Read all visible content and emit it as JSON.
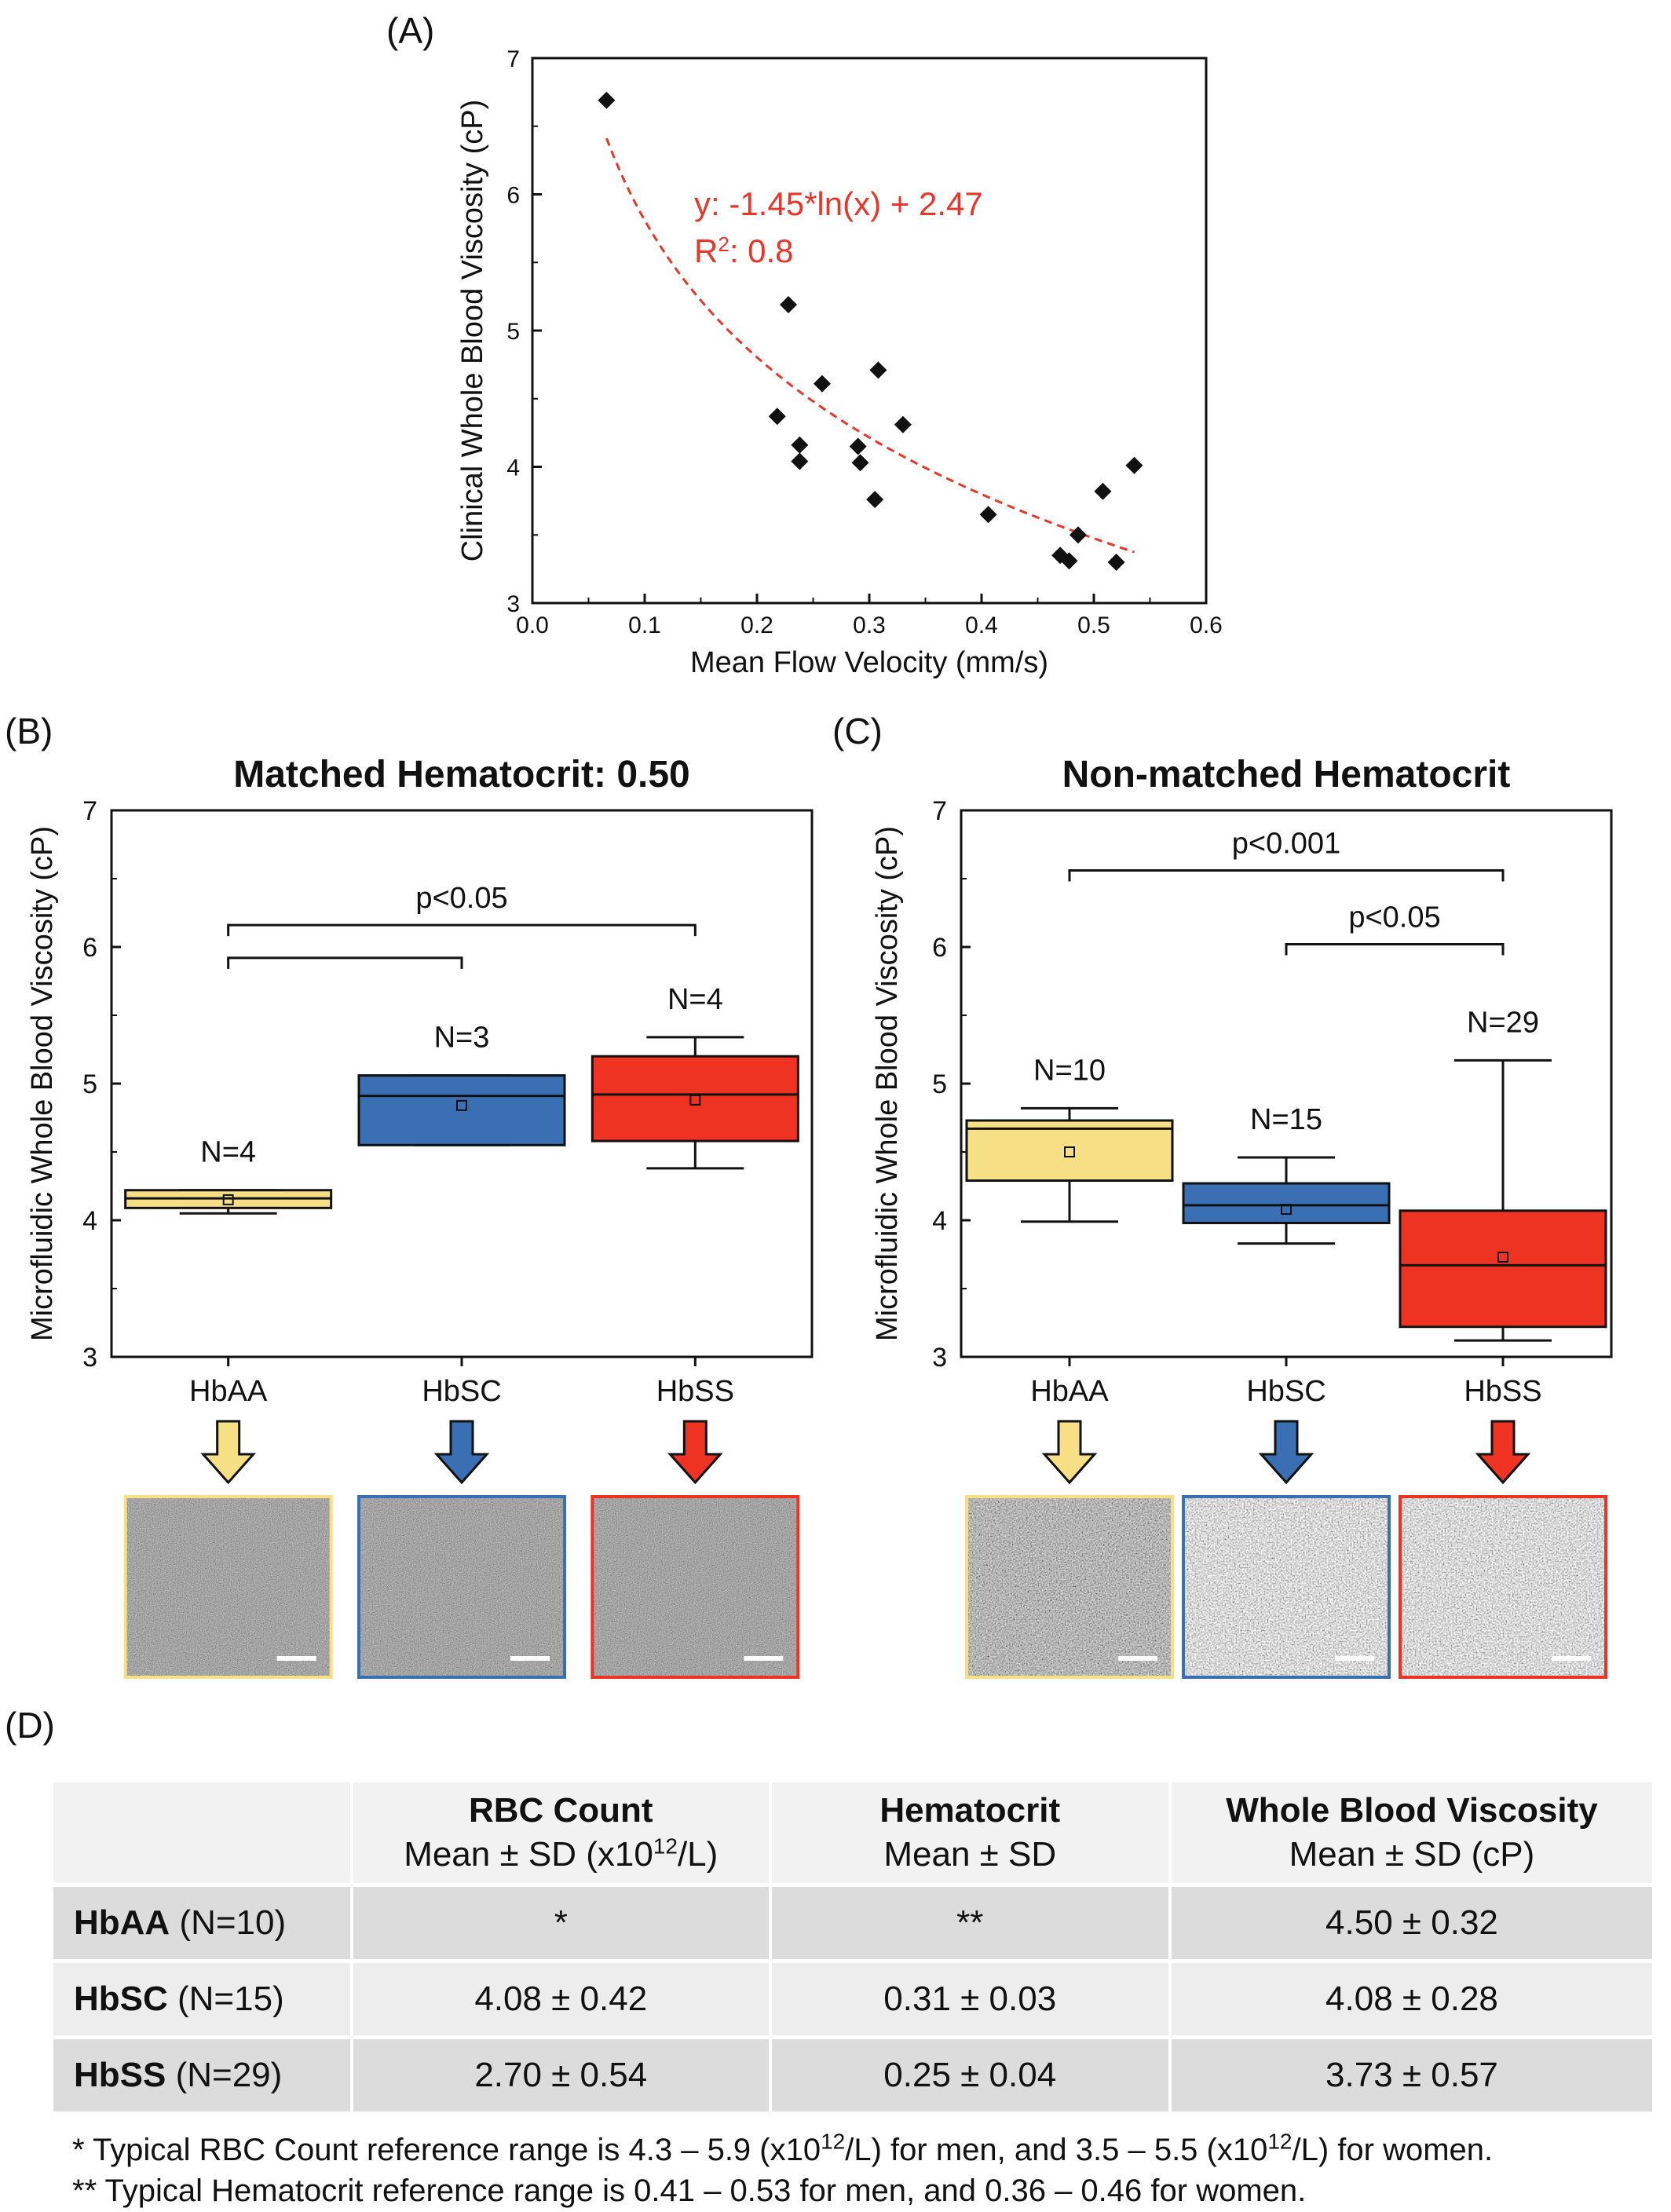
{
  "panels": {
    "a": "(A)",
    "b": "(B)",
    "c": "(C)",
    "d": "(D)"
  },
  "colors": {
    "hbaa": "#f7df86",
    "hbsc": "#3b6fb3",
    "hbss": "#ee3323",
    "fit": "#e8362a"
  },
  "chart_data": [
    {
      "type": "scatter",
      "xlabel": "Mean Flow Velocity (mm/s)",
      "ylabel": "Clinical Whole Blood Viscosity (cP)",
      "xlim": [
        0.0,
        0.6
      ],
      "ylim": [
        3,
        7
      ],
      "xticks": [
        "0.0",
        "0.1",
        "0.2",
        "0.3",
        "0.4",
        "0.5",
        "0.6"
      ],
      "yticks": [
        "3",
        "4",
        "5",
        "6",
        "7"
      ],
      "points": [
        [
          0.066,
          6.69
        ],
        [
          0.228,
          5.19
        ],
        [
          0.218,
          4.37
        ],
        [
          0.238,
          4.16
        ],
        [
          0.238,
          4.04
        ],
        [
          0.258,
          4.61
        ],
        [
          0.308,
          4.71
        ],
        [
          0.29,
          4.15
        ],
        [
          0.292,
          4.03
        ],
        [
          0.33,
          4.31
        ],
        [
          0.305,
          3.76
        ],
        [
          0.406,
          3.65
        ],
        [
          0.47,
          3.35
        ],
        [
          0.478,
          3.31
        ],
        [
          0.486,
          3.5
        ],
        [
          0.508,
          3.82
        ],
        [
          0.52,
          3.3
        ],
        [
          0.536,
          4.01
        ]
      ],
      "fit": {
        "label": "y: -1.45*ln(x) + 2.47",
        "r2_label": "R",
        "r2_sup": "2",
        "r2_value": ": 0.8",
        "a": -1.45,
        "b": 2.47,
        "x_from": 0.066,
        "x_to": 0.536
      },
      "grid": false
    },
    {
      "type": "box",
      "title": "Matched Hematocrit: 0.50",
      "ylabel": "Microfluidic Whole Blood Viscosity (cP)",
      "ylim": [
        3,
        7
      ],
      "yticks": [
        "3",
        "4",
        "5",
        "6",
        "7"
      ],
      "categories": [
        "HbAA",
        "HbSC",
        "HbSS"
      ],
      "boxes": [
        {
          "n_label": "N=4",
          "whisker_low": 4.05,
          "q1": 4.09,
          "median": 4.16,
          "q3": 4.22,
          "whisker_high": 4.22,
          "mean": 4.15,
          "color": "hbaa"
        },
        {
          "n_label": "N=3",
          "whisker_low": 4.55,
          "q1": 4.55,
          "median": 4.91,
          "q3": 5.06,
          "whisker_high": 5.06,
          "mean": 4.84,
          "color": "hbsc"
        },
        {
          "n_label": "N=4",
          "whisker_low": 4.38,
          "q1": 4.58,
          "median": 4.92,
          "q3": 5.2,
          "whisker_high": 5.34,
          "mean": 4.88,
          "color": "hbss"
        }
      ],
      "brackets": [
        {
          "from": 0,
          "to": 2,
          "y": 6.16,
          "label": "p<0.05"
        },
        {
          "from": 0,
          "to": 1,
          "y": 5.92,
          "label": ""
        }
      ]
    },
    {
      "type": "box",
      "title": "Non-matched Hematocrit",
      "ylabel": "Microfluidic Whole Blood Viscosity (cP)",
      "ylim": [
        3,
        7
      ],
      "yticks": [
        "3",
        "4",
        "5",
        "6",
        "7"
      ],
      "categories": [
        "HbAA",
        "HbSC",
        "HbSS"
      ],
      "boxes": [
        {
          "n_label": "N=10",
          "whisker_low": 3.99,
          "q1": 4.29,
          "median": 4.67,
          "q3": 4.73,
          "whisker_high": 4.82,
          "mean": 4.5,
          "color": "hbaa"
        },
        {
          "n_label": "N=15",
          "whisker_low": 3.83,
          "q1": 3.98,
          "median": 4.11,
          "q3": 4.27,
          "whisker_high": 4.46,
          "mean": 4.08,
          "color": "hbsc"
        },
        {
          "n_label": "N=29",
          "whisker_low": 3.12,
          "q1": 3.22,
          "median": 3.67,
          "q3": 4.07,
          "whisker_high": 5.17,
          "mean": 3.73,
          "color": "hbss"
        }
      ],
      "brackets": [
        {
          "from": 0,
          "to": 2,
          "y": 6.56,
          "label": "p<0.001"
        },
        {
          "from": 1,
          "to": 2,
          "y": 6.02,
          "label": "p<0.05"
        }
      ]
    }
  ],
  "table": {
    "headers": [
      {
        "bold": "",
        "sub": "",
        "unit_pre": "",
        "unit_sup": "",
        "unit_post": ""
      },
      {
        "bold": "RBC Count",
        "sub": "",
        "unit_pre": "Mean ± SD (x10",
        "unit_sup": "12",
        "unit_post": "/L)"
      },
      {
        "bold": "Hematocrit",
        "sub": "Mean ± SD",
        "unit_pre": "",
        "unit_sup": "",
        "unit_post": ""
      },
      {
        "bold": "Whole Blood Viscosity",
        "sub": "Mean ± SD (cP)",
        "unit_pre": "",
        "unit_sup": "",
        "unit_post": ""
      }
    ],
    "rows": [
      {
        "group": "HbAA",
        "n": " (N=10)",
        "rbc": "*",
        "hct": "**",
        "wbv": "4.50 ± 0.32"
      },
      {
        "group": "HbSC",
        "n": " (N=15)",
        "rbc": "4.08 ± 0.42",
        "hct": "0.31 ± 0.03",
        "wbv": "4.08 ± 0.28"
      },
      {
        "group": "HbSS",
        "n": " (N=29)",
        "rbc": "2.70 ± 0.54",
        "hct": "0.25 ± 0.04",
        "wbv": "3.73 ± 0.57"
      }
    ]
  },
  "footnotes": {
    "f1_a": "* Typical RBC Count reference range is 4.3 – 5.9 (x10",
    "f1_sup1": "12",
    "f1_b": "/L) for men, and 3.5 – 5.5 (x10",
    "f1_sup2": "12",
    "f1_c": "/L) for women.",
    "f2": "** Typical Hematocrit reference range is 0.41 – 0.53 for men, and 0.36 – 0.46 for women."
  }
}
